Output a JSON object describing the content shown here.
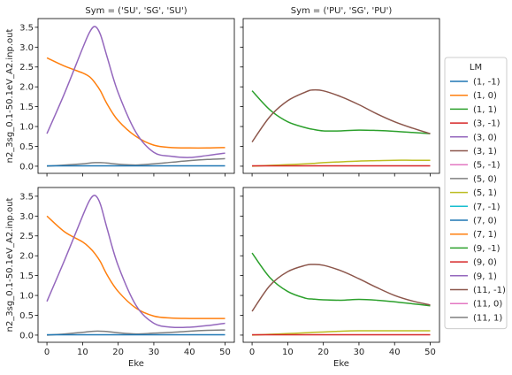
{
  "figure": {
    "legend_title": "LM",
    "legend_entries": [
      "(1, -1)",
      "(1, 0)",
      "(1, 1)",
      "(3, -1)",
      "(3, 0)",
      "(3, 1)",
      "(5, -1)",
      "(5, 0)",
      "(5, 1)",
      "(7, -1)",
      "(7, 0)",
      "(7, 1)",
      "(9, -1)",
      "(9, 0)",
      "(9, 1)",
      "(11, -1)",
      "(11, 0)",
      "(11, 1)"
    ],
    "colors": [
      "#1f77b4",
      "#ff7f0e",
      "#2ca02c",
      "#d62728",
      "#9467bd",
      "#8c564b",
      "#e377c2",
      "#7f7f7f",
      "#bcbd22",
      "#17becf",
      "#1f77b4",
      "#ff7f0e",
      "#2ca02c",
      "#d62728",
      "#9467bd",
      "#8c564b",
      "#e377c2",
      "#7f7f7f"
    ]
  },
  "chart_data": [
    {
      "type": "line",
      "title": "Sym = ('SU', 'SG', 'SU')",
      "xlabel": "",
      "ylabel": "n2_3sg_0.1-50.1eV_A2.inp.out",
      "xlim": [
        -2.5,
        52.6
      ],
      "ylim": [
        -0.18,
        3.72
      ],
      "xticks": [
        0,
        10,
        20,
        30,
        40,
        50
      ],
      "yticks": [
        0.0,
        0.5,
        1.0,
        1.5,
        2.0,
        2.5,
        3.0,
        3.5
      ],
      "x": [
        0,
        5,
        10,
        12,
        13.5,
        15,
        17,
        20,
        25,
        30,
        35,
        40,
        45,
        50
      ],
      "series": [
        {
          "name": "(1, 0)",
          "values": [
            2.73,
            2.52,
            2.35,
            2.25,
            2.1,
            1.9,
            1.55,
            1.15,
            0.75,
            0.53,
            0.47,
            0.46,
            0.46,
            0.47
          ]
        },
        {
          "name": "(3, 0)",
          "values": [
            0.82,
            1.85,
            2.97,
            3.38,
            3.52,
            3.32,
            2.72,
            1.85,
            0.85,
            0.35,
            0.25,
            0.22,
            0.27,
            0.33
          ]
        },
        {
          "name": "(5, 0)",
          "values": [
            0.0,
            0.03,
            0.06,
            0.08,
            0.09,
            0.09,
            0.08,
            0.05,
            0.03,
            0.06,
            0.1,
            0.14,
            0.17,
            0.19
          ]
        },
        {
          "name": "(1, -1)",
          "values": [
            0.01,
            0.01,
            0.01,
            0.01,
            0.01,
            0.01,
            0.01,
            0.01,
            0.01,
            0.01,
            0.01,
            0.01,
            0.01,
            0.01
          ]
        }
      ]
    },
    {
      "type": "line",
      "title": "Sym = ('PU', 'SG', 'PU')",
      "xlabel": "",
      "ylabel": "",
      "xlim": [
        -2.5,
        52.6
      ],
      "ylim": [
        -0.18,
        3.72
      ],
      "xticks": [
        0,
        10,
        20,
        30,
        40,
        50
      ],
      "yticks": [],
      "x": [
        0,
        5,
        10,
        15,
        17,
        20,
        25,
        30,
        35,
        40,
        45,
        50
      ],
      "series": [
        {
          "name": "(1, 1)",
          "values": [
            1.9,
            1.42,
            1.12,
            0.97,
            0.93,
            0.89,
            0.89,
            0.91,
            0.9,
            0.88,
            0.85,
            0.82
          ]
        },
        {
          "name": "(3, 1)",
          "values": [
            0.61,
            1.25,
            1.65,
            1.87,
            1.92,
            1.9,
            1.75,
            1.55,
            1.32,
            1.12,
            0.96,
            0.82
          ]
        },
        {
          "name": "(5, 1)",
          "values": [
            0.0,
            0.02,
            0.04,
            0.06,
            0.07,
            0.09,
            0.11,
            0.13,
            0.14,
            0.15,
            0.15,
            0.15
          ]
        },
        {
          "name": "(3, -1)",
          "values": [
            0.01,
            0.01,
            0.01,
            0.01,
            0.01,
            0.01,
            0.01,
            0.01,
            0.01,
            0.01,
            0.01,
            0.01
          ]
        }
      ]
    },
    {
      "type": "line",
      "title": "",
      "xlabel": "Eke",
      "ylabel": "n2_3sg_0.1-50.1eV_A2.inp.out",
      "xlim": [
        -2.5,
        52.6
      ],
      "ylim": [
        -0.18,
        3.72
      ],
      "xticks": [
        0,
        10,
        20,
        30,
        40,
        50
      ],
      "yticks": [
        0.0,
        0.5,
        1.0,
        1.5,
        2.0,
        2.5,
        3.0,
        3.5
      ],
      "x": [
        0,
        5,
        10,
        12,
        13.5,
        15,
        17,
        20,
        25,
        30,
        35,
        40,
        45,
        50
      ],
      "series": [
        {
          "name": "(1, 0)",
          "values": [
            3.0,
            2.6,
            2.35,
            2.2,
            2.05,
            1.85,
            1.5,
            1.1,
            0.68,
            0.48,
            0.43,
            0.42,
            0.42,
            0.42
          ]
        },
        {
          "name": "(3, 0)",
          "values": [
            0.85,
            1.9,
            3.0,
            3.4,
            3.52,
            3.3,
            2.65,
            1.75,
            0.75,
            0.3,
            0.2,
            0.2,
            0.24,
            0.3
          ]
        },
        {
          "name": "(5, 0)",
          "values": [
            0.0,
            0.03,
            0.07,
            0.09,
            0.1,
            0.1,
            0.09,
            0.06,
            0.03,
            0.05,
            0.07,
            0.1,
            0.12,
            0.13
          ]
        },
        {
          "name": "(1, -1)",
          "values": [
            0.01,
            0.01,
            0.01,
            0.01,
            0.01,
            0.01,
            0.01,
            0.01,
            0.01,
            0.01,
            0.01,
            0.01,
            0.01,
            0.01
          ]
        }
      ]
    },
    {
      "type": "line",
      "title": "",
      "xlabel": "Eke",
      "ylabel": "",
      "xlim": [
        -2.5,
        52.6
      ],
      "ylim": [
        -0.18,
        3.72
      ],
      "xticks": [
        0,
        10,
        20,
        30,
        40,
        50
      ],
      "yticks": [],
      "x": [
        0,
        5,
        10,
        15,
        17,
        20,
        25,
        30,
        35,
        40,
        45,
        50
      ],
      "series": [
        {
          "name": "(1, 1)",
          "values": [
            2.07,
            1.45,
            1.1,
            0.93,
            0.91,
            0.89,
            0.88,
            0.9,
            0.88,
            0.84,
            0.79,
            0.74
          ]
        },
        {
          "name": "(3, 1)",
          "values": [
            0.6,
            1.25,
            1.6,
            1.76,
            1.78,
            1.76,
            1.62,
            1.42,
            1.2,
            1.0,
            0.86,
            0.76
          ]
        },
        {
          "name": "(5, 1)",
          "values": [
            0.0,
            0.02,
            0.04,
            0.06,
            0.07,
            0.08,
            0.1,
            0.11,
            0.11,
            0.11,
            0.11,
            0.11
          ]
        },
        {
          "name": "(3, -1)",
          "values": [
            0.01,
            0.01,
            0.01,
            0.01,
            0.01,
            0.01,
            0.01,
            0.01,
            0.01,
            0.01,
            0.01,
            0.01
          ]
        }
      ]
    }
  ]
}
